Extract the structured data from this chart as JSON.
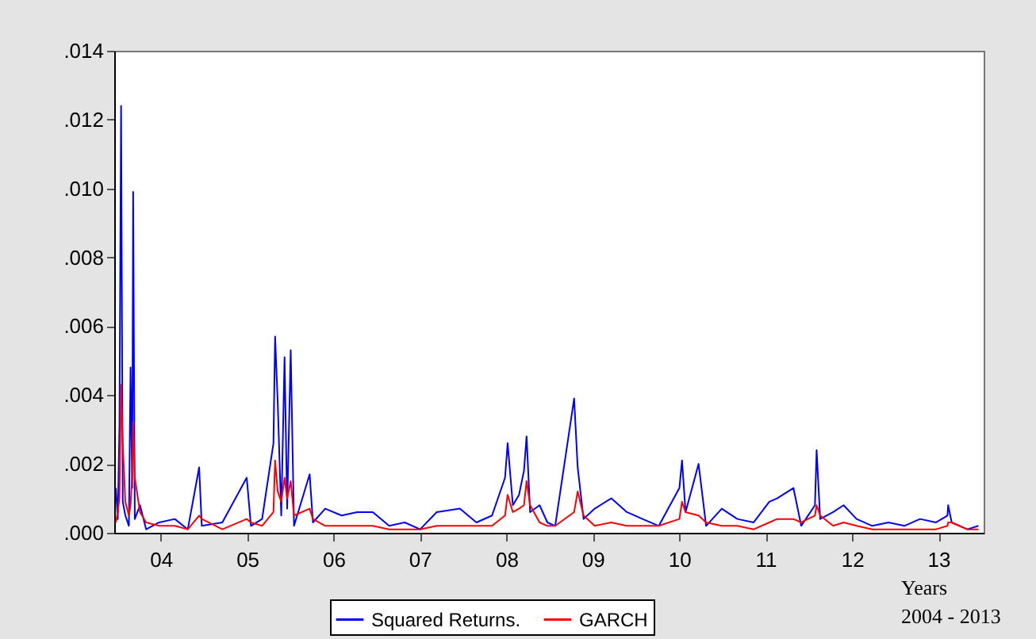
{
  "chart_data": {
    "type": "line",
    "x": [
      "2003-12-24",
      "2004-01-01",
      "2004-01-08",
      "2004-01-15",
      "2004-01-22",
      "2004-02-02",
      "2004-02-17",
      "2004-02-24",
      "2004-03-02",
      "2004-03-06",
      "2004-03-13",
      "2004-04-04",
      "2004-04-30",
      "2004-06-24",
      "2004-08-29",
      "2004-10-23",
      "2004-12-10",
      "2004-12-21",
      "2005-03-18",
      "2005-06-29",
      "2005-07-17",
      "2005-09-02",
      "2005-10-20",
      "2005-10-27",
      "2005-11-07",
      "2005-11-22",
      "2005-12-06",
      "2005-12-17",
      "2006-01-01",
      "2006-01-15",
      "2006-03-22",
      "2006-04-05",
      "2006-05-27",
      "2006-08-04",
      "2006-10-09",
      "2006-12-14",
      "2007-02-21",
      "2007-04-28",
      "2007-07-02",
      "2007-09-10",
      "2007-12-17",
      "2008-02-25",
      "2008-05-01",
      "2008-06-25",
      "2008-07-06",
      "2008-07-28",
      "2008-08-23",
      "2008-09-13",
      "2008-09-24",
      "2008-10-09",
      "2008-11-18",
      "2008-12-21",
      "2009-01-23",
      "2009-04-13",
      "2009-04-28",
      "2009-05-23",
      "2009-07-09",
      "2009-09-17",
      "2009-11-22",
      "2010-01-27",
      "2010-04-06",
      "2010-07-02",
      "2010-07-13",
      "2010-07-28",
      "2010-09-21",
      "2010-10-23",
      "2010-12-28",
      "2011-03-04",
      "2011-05-12",
      "2011-07-17",
      "2011-08-19",
      "2011-10-27",
      "2011-11-29",
      "2012-01-26",
      "2012-02-02",
      "2012-02-17",
      "2012-04-12",
      "2012-05-26",
      "2012-07-20",
      "2012-09-24",
      "2012-12-02",
      "2013-02-07",
      "2013-04-14",
      "2013-06-21",
      "2013-08-08",
      "2013-08-11",
      "2013-08-26",
      "2013-10-31",
      "2013-12-17"
    ],
    "series": [
      {
        "name": "Squared Returns.",
        "color": "#0000ff",
        "values": [
          0.0013,
          0.0004,
          0.0031,
          0.0124,
          0.0009,
          0.0005,
          0.0002,
          0.0048,
          0.0013,
          0.0099,
          0.0004,
          0.0008,
          0.0001,
          0.0003,
          0.0004,
          0.0001,
          0.0019,
          0.0002,
          0.0003,
          0.0016,
          0.0002,
          0.0004,
          0.0026,
          0.0057,
          0.0038,
          0.0005,
          0.0051,
          0.0007,
          0.0053,
          0.0002,
          0.0017,
          0.0003,
          0.0007,
          0.0005,
          0.0006,
          0.0006,
          0.0002,
          0.0003,
          0.0001,
          0.0006,
          0.0007,
          0.0003,
          0.0005,
          0.0016,
          0.0026,
          0.0008,
          0.0011,
          0.0018,
          0.0028,
          0.0006,
          0.0008,
          0.0003,
          0.0002,
          0.0039,
          0.0019,
          0.0004,
          0.0007,
          0.001,
          0.0006,
          0.0004,
          0.0002,
          0.0013,
          0.0021,
          0.0006,
          0.002,
          0.0002,
          0.0007,
          0.0004,
          0.0003,
          0.0009,
          0.001,
          0.0013,
          0.0002,
          0.0008,
          0.0024,
          0.0004,
          0.0006,
          0.0008,
          0.0004,
          0.0002,
          0.0003,
          0.0002,
          0.0004,
          0.0003,
          0.0005,
          0.0008,
          0.0003,
          0.0001,
          0.0002
        ]
      },
      {
        "name": "GARCH",
        "color": "#ff0000",
        "values": [
          0.0003,
          0.0006,
          0.001,
          0.0043,
          0.0026,
          0.0009,
          0.0005,
          0.0008,
          0.0017,
          0.0032,
          0.0016,
          0.0006,
          0.0003,
          0.0002,
          0.0002,
          0.0001,
          0.0005,
          0.0004,
          0.0001,
          0.0004,
          0.0003,
          0.0002,
          0.0006,
          0.0021,
          0.0012,
          0.0009,
          0.0016,
          0.001,
          0.0015,
          0.0005,
          0.0007,
          0.0004,
          0.0002,
          0.0002,
          0.0002,
          0.0002,
          0.0001,
          0.0001,
          0.0001,
          0.0002,
          0.0002,
          0.0002,
          0.0002,
          0.0005,
          0.0011,
          0.0006,
          0.0007,
          0.0008,
          0.0015,
          0.0008,
          0.0003,
          0.0002,
          0.0002,
          0.0006,
          0.0012,
          0.0005,
          0.0002,
          0.0003,
          0.0002,
          0.0002,
          0.0002,
          0.0004,
          0.0009,
          0.0006,
          0.0005,
          0.0003,
          0.0002,
          0.0002,
          0.0001,
          0.0003,
          0.0004,
          0.0004,
          0.0003,
          0.0005,
          0.0008,
          0.0005,
          0.0002,
          0.0003,
          0.0002,
          0.0001,
          0.0001,
          0.0001,
          0.0001,
          0.0001,
          0.0002,
          0.0003,
          0.0003,
          0.0001,
          0.0001
        ]
      }
    ],
    "xlim": [
      "2003-12-17",
      "2014-01-08"
    ],
    "xticks": [
      {
        "value": "2004-07-01",
        "label": "04"
      },
      {
        "value": "2005-07-01",
        "label": "05"
      },
      {
        "value": "2006-07-01",
        "label": "06"
      },
      {
        "value": "2007-07-01",
        "label": "07"
      },
      {
        "value": "2008-07-01",
        "label": "08"
      },
      {
        "value": "2009-07-01",
        "label": "09"
      },
      {
        "value": "2010-07-01",
        "label": "10"
      },
      {
        "value": "2011-07-01",
        "label": "11"
      },
      {
        "value": "2012-07-01",
        "label": "12"
      },
      {
        "value": "2013-07-01",
        "label": "13"
      }
    ],
    "ylim": [
      0,
      0.014
    ],
    "yticks": [
      {
        "value": 0,
        "label": ".000"
      },
      {
        "value": 0.002,
        "label": ".002"
      },
      {
        "value": 0.004,
        "label": ".004"
      },
      {
        "value": 0.006,
        "label": ".006"
      },
      {
        "value": 0.008,
        "label": ".008"
      },
      {
        "value": 0.01,
        "label": ".010"
      },
      {
        "value": 0.012,
        "label": ".012"
      },
      {
        "value": 0.014,
        "label": ".014"
      }
    ],
    "annotations": [
      "Years",
      "2004 - 2013"
    ],
    "legend": "bottom",
    "grid": false,
    "line_style": "solid",
    "marker": "none"
  }
}
